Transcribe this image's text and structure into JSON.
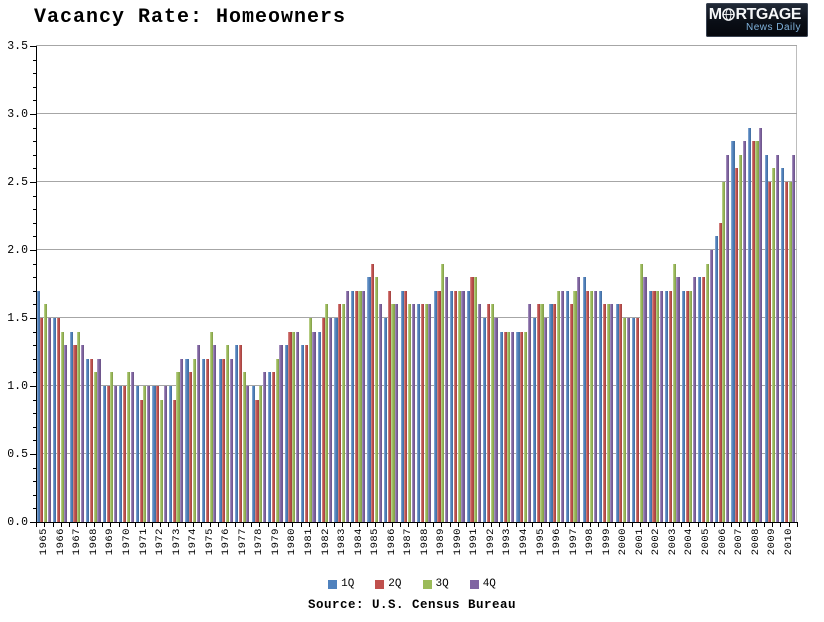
{
  "header": {
    "title": "Vacancy Rate: Homeowners"
  },
  "logo": {
    "word_start": "M",
    "word_end": "RTGAGE",
    "tagline": "News Daily",
    "bg_color": "#0a0e16",
    "tagline_color": "#7fb2dc"
  },
  "chart_data": {
    "type": "bar",
    "title": "Vacancy Rate: Homeowners",
    "xlabel": "",
    "ylabel": "",
    "ylim": [
      0,
      3.5
    ],
    "y_ticks": [
      "0.0",
      "0.5",
      "1.0",
      "1.5",
      "2.0",
      "2.5",
      "3.0",
      "3.5"
    ],
    "grid": true,
    "legend_position": "bottom",
    "categories": [
      1965,
      1966,
      1967,
      1968,
      1969,
      1970,
      1971,
      1972,
      1973,
      1974,
      1975,
      1976,
      1977,
      1978,
      1979,
      1980,
      1981,
      1982,
      1983,
      1984,
      1985,
      1986,
      1987,
      1988,
      1989,
      1990,
      1991,
      1992,
      1993,
      1994,
      1995,
      1996,
      1997,
      1998,
      1999,
      2000,
      2001,
      2002,
      2003,
      2004,
      2005,
      2006,
      2007,
      2008,
      2009,
      2010
    ],
    "series": [
      {
        "name": "1Q",
        "color": "#4F81BD",
        "values": [
          1.7,
          1.5,
          1.4,
          1.2,
          1.0,
          1.0,
          1.0,
          1.0,
          1.0,
          1.2,
          1.2,
          1.2,
          1.3,
          1.0,
          1.1,
          1.3,
          1.3,
          1.4,
          1.5,
          1.7,
          1.8,
          1.5,
          1.7,
          1.6,
          1.7,
          1.7,
          1.7,
          1.5,
          1.4,
          1.4,
          1.5,
          1.6,
          1.7,
          1.8,
          1.7,
          1.6,
          1.5,
          1.7,
          1.7,
          1.7,
          1.8,
          2.1,
          2.8,
          2.9,
          2.7,
          2.6
        ]
      },
      {
        "name": "2Q",
        "color": "#C0504D",
        "values": [
          1.5,
          1.5,
          1.3,
          1.2,
          1.0,
          1.0,
          0.9,
          1.0,
          0.9,
          1.1,
          1.2,
          1.2,
          1.3,
          0.9,
          1.1,
          1.4,
          1.3,
          1.5,
          1.6,
          1.7,
          1.9,
          1.7,
          1.7,
          1.6,
          1.7,
          1.7,
          1.8,
          1.6,
          1.4,
          1.4,
          1.6,
          1.6,
          1.6,
          1.7,
          1.6,
          1.6,
          1.5,
          1.7,
          1.7,
          1.7,
          1.8,
          2.2,
          2.6,
          2.8,
          2.5,
          2.5
        ]
      },
      {
        "name": "3Q",
        "color": "#9BBB59",
        "values": [
          1.6,
          1.4,
          1.4,
          1.1,
          1.1,
          1.1,
          1.0,
          0.9,
          1.1,
          1.2,
          1.4,
          1.3,
          1.1,
          1.0,
          1.2,
          1.4,
          1.5,
          1.6,
          1.6,
          1.7,
          1.8,
          1.6,
          1.6,
          1.6,
          1.9,
          1.7,
          1.8,
          1.6,
          1.4,
          1.4,
          1.6,
          1.7,
          1.7,
          1.7,
          1.6,
          1.5,
          1.9,
          1.7,
          1.9,
          1.7,
          1.9,
          2.5,
          2.7,
          2.8,
          2.6,
          2.5
        ]
      },
      {
        "name": "4Q",
        "color": "#8064A2",
        "values": [
          1.5,
          1.3,
          1.3,
          1.2,
          1.0,
          1.1,
          1.0,
          1.0,
          1.2,
          1.3,
          1.3,
          1.2,
          1.0,
          1.1,
          1.3,
          1.4,
          1.4,
          1.5,
          1.7,
          1.7,
          1.6,
          1.6,
          1.6,
          1.6,
          1.8,
          1.7,
          1.6,
          1.5,
          1.4,
          1.6,
          1.5,
          1.7,
          1.8,
          1.7,
          1.6,
          1.5,
          1.8,
          1.7,
          1.8,
          1.8,
          2.0,
          2.7,
          2.8,
          2.9,
          2.7,
          2.7
        ]
      }
    ],
    "source": "Source: U.S. Census Bureau"
  },
  "footer": {
    "source": "Source: U.S. Census Bureau"
  }
}
